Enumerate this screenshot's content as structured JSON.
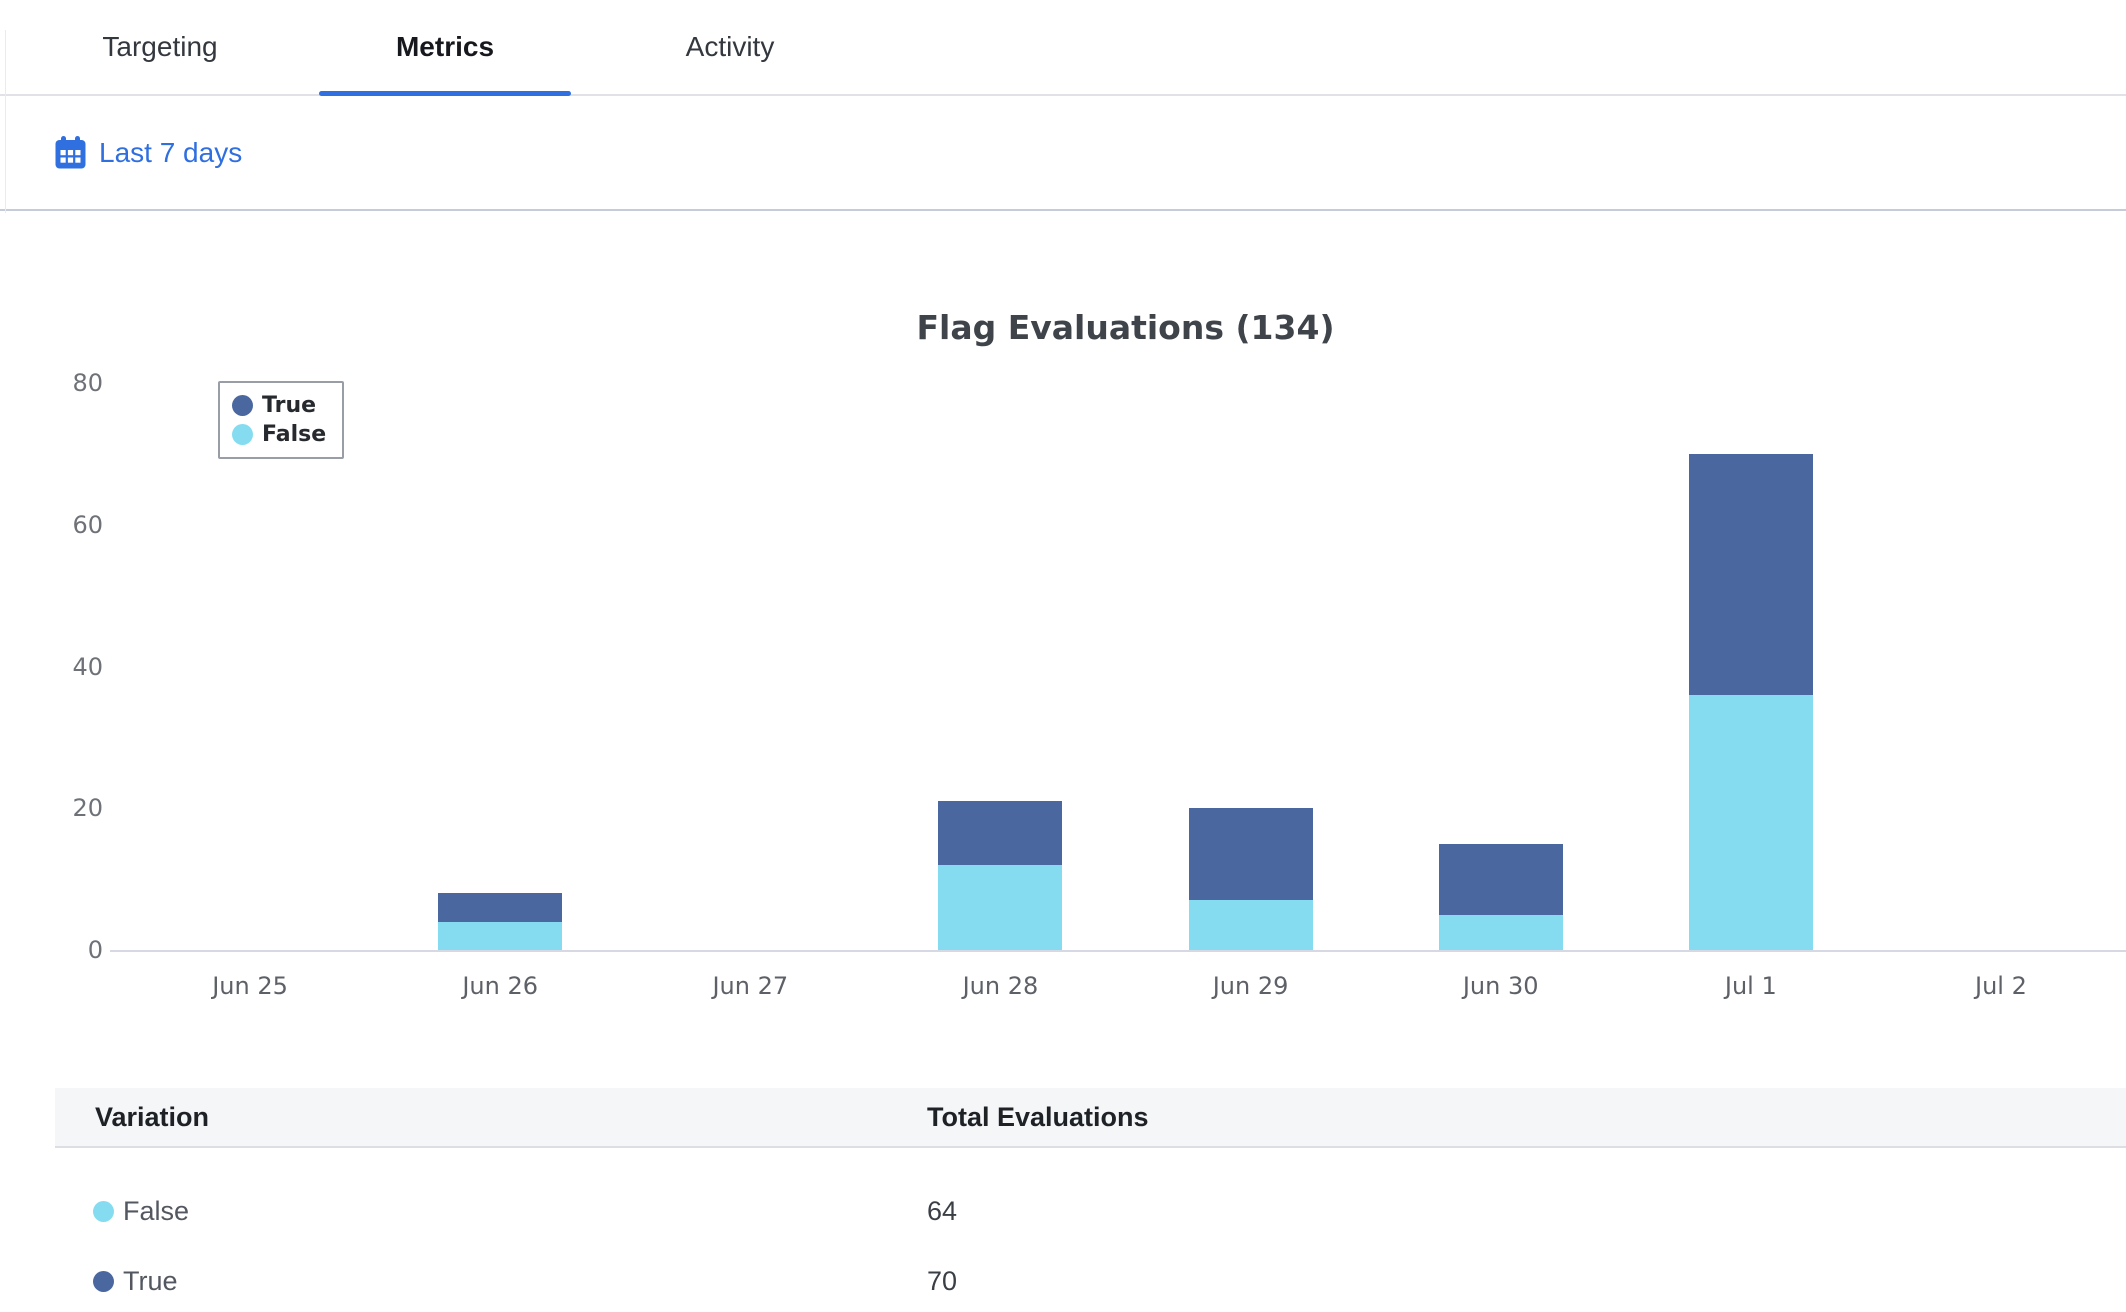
{
  "tabs": {
    "items": [
      {
        "label": "Targeting",
        "active": false
      },
      {
        "label": "Metrics",
        "active": true
      },
      {
        "label": "Activity",
        "active": false
      }
    ]
  },
  "date_range": {
    "label": "Last 7 days"
  },
  "chart_data": {
    "type": "bar",
    "stacked": true,
    "title": "Flag Evaluations (134)",
    "total_evaluations": 134,
    "categories": [
      "Jun 25",
      "Jun 26",
      "Jun 27",
      "Jun 28",
      "Jun 29",
      "Jun 30",
      "Jul 1",
      "Jul 2"
    ],
    "series": [
      {
        "name": "True",
        "color": "#4a67a0",
        "values": [
          0,
          4,
          0,
          9,
          13,
          10,
          34,
          0
        ]
      },
      {
        "name": "False",
        "color": "#85dcf0",
        "values": [
          0,
          4,
          0,
          12,
          7,
          5,
          36,
          0
        ]
      }
    ],
    "xlabel": "",
    "ylabel": "",
    "ylim": [
      0,
      80
    ],
    "yticks": [
      0,
      20,
      40,
      60,
      80
    ],
    "grid": false,
    "legend_position": "top-left"
  },
  "table": {
    "columns": {
      "variation": "Variation",
      "total": "Total Evaluations"
    },
    "rows": [
      {
        "label": "False",
        "dot_color": "#85dcf0",
        "total": "64"
      },
      {
        "label": "True",
        "dot_color": "#4a67a0",
        "total": "70"
      }
    ]
  },
  "colors": {
    "accent_blue": "#2f6fe0",
    "axis_line": "#d6d9e4",
    "true_series": "#4a67a0",
    "false_series": "#85dcf0"
  }
}
